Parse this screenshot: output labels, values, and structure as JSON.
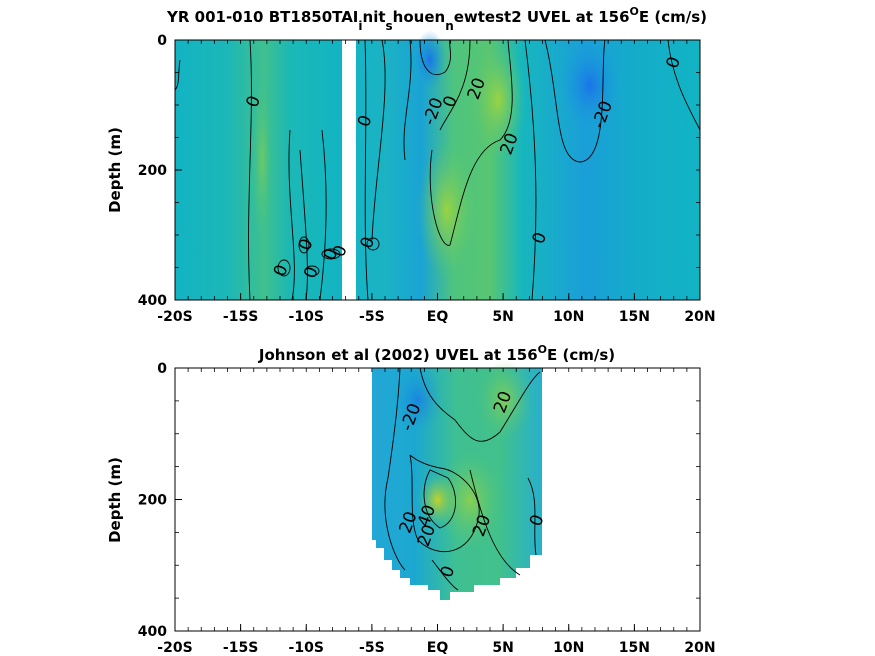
{
  "chart_data": [
    {
      "type": "heatmap",
      "title": "YR 001-010 BT1850TAI",
      "title_parts": {
        "prefix": "YR 001-010 BT1850TAI",
        "sub1": "i",
        "mid1": "nit",
        "sub2": "s",
        "mid2": "houen",
        "sub3": "n",
        "mid3": "ewtest2 UVEL at 156",
        "sup": "O",
        "suffix": "E (cm/s)"
      },
      "ylabel": "Depth (m)",
      "xlabel": "",
      "x_tick_labels": [
        "-20S",
        "-15S",
        "-10S",
        "-5S",
        "EQ",
        "5N",
        "10N",
        "15N",
        "20N"
      ],
      "x_ticks": [
        -20,
        -15,
        -10,
        -5,
        0,
        5,
        10,
        15,
        20
      ],
      "y_tick_labels": [
        "0",
        "200",
        "400"
      ],
      "y_ticks": [
        0,
        200,
        400
      ],
      "xlim": [
        -20,
        20
      ],
      "ylim": [
        400,
        0
      ],
      "contour_labels": [
        {
          "text": "0",
          "x": -14.0,
          "y": 95
        },
        {
          "text": "-20",
          "x": -0.3,
          "y": 110
        },
        {
          "text": "0",
          "x": 1.0,
          "y": 95
        },
        {
          "text": "20",
          "x": 3.0,
          "y": 75
        },
        {
          "text": "20",
          "x": 5.5,
          "y": 160
        },
        {
          "text": "-20",
          "x": 12.6,
          "y": 115
        },
        {
          "text": "0",
          "x": 18.0,
          "y": 35
        },
        {
          "text": "0",
          "x": -5.5,
          "y": 125
        },
        {
          "text": "0",
          "x": 7.8,
          "y": 305
        },
        {
          "text": "0",
          "x": -10.0,
          "y": 315
        },
        {
          "text": "0",
          "x": -5.3,
          "y": 312
        },
        {
          "text": "0",
          "x": -8.1,
          "y": 330
        },
        {
          "text": "0",
          "x": -7.4,
          "y": 325
        },
        {
          "text": "0",
          "x": -11.9,
          "y": 355
        },
        {
          "text": "0",
          "x": -9.6,
          "y": 358
        }
      ]
    },
    {
      "type": "heatmap",
      "title": "Johnson et al (2002) UVEL at 156",
      "title_parts": {
        "prefix": "Johnson et al (2002) UVEL at 156",
        "sup": "O",
        "suffix": "E (cm/s)"
      },
      "ylabel": "Depth (m)",
      "xlabel": "",
      "x_tick_labels": [
        "-20S",
        "-15S",
        "-10S",
        "-5S",
        "EQ",
        "5N",
        "10N",
        "15N",
        "20N"
      ],
      "x_ticks": [
        -20,
        -15,
        -10,
        -5,
        0,
        5,
        10,
        15,
        20
      ],
      "y_tick_labels": [
        "0",
        "200",
        "400"
      ],
      "y_ticks": [
        0,
        200,
        400
      ],
      "xlim": [
        -20,
        20
      ],
      "ylim": [
        400,
        0
      ],
      "data_extent": {
        "lon": [
          -5,
          8
        ],
        "depth": [
          0,
          350
        ]
      },
      "contour_labels": [
        {
          "text": "-20",
          "x": -2.0,
          "y": 75
        },
        {
          "text": "20",
          "x": 5.0,
          "y": 52
        },
        {
          "text": "20",
          "x": -2.2,
          "y": 235
        },
        {
          "text": "40",
          "x": -0.8,
          "y": 225
        },
        {
          "text": "20",
          "x": -0.8,
          "y": 255
        },
        {
          "text": "20",
          "x": 3.4,
          "y": 240
        },
        {
          "text": "0",
          "x": 7.6,
          "y": 232
        },
        {
          "text": "0",
          "x": 0.8,
          "y": 310
        }
      ]
    }
  ]
}
